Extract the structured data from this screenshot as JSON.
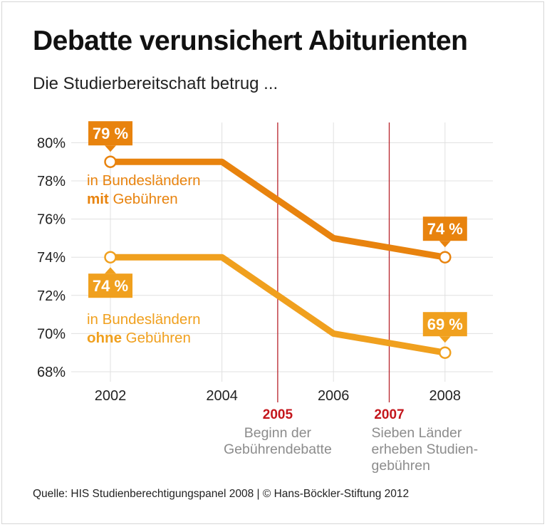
{
  "title": "Debatte verunsichert Abiturienten",
  "subtitle": "Die Studierbereitschaft betrug ...",
  "source": "Quelle: HIS Studienberechtigungspanel 2008 | © Hans-Böckler-Stiftung 2012",
  "colors": {
    "series_mit": "#e8830e",
    "series_ohne": "#f0a01e",
    "event_line": "#b8242b",
    "event_year": "#c4161c",
    "event_text": "#8c8c8c",
    "grid": "#e0e0e0"
  },
  "chart_data": {
    "type": "line",
    "x": [
      2002,
      2004,
      2006,
      2008
    ],
    "x_tick_labels": [
      "2002",
      "2004",
      "2006",
      "2008"
    ],
    "ylim": [
      68,
      80
    ],
    "y_ticks": [
      68,
      70,
      72,
      74,
      76,
      78,
      80
    ],
    "y_tick_labels": [
      "68%",
      "70%",
      "72%",
      "74%",
      "76%",
      "78%",
      "80%"
    ],
    "grid": "horizontal",
    "series": [
      {
        "key": "mit",
        "label_parts": [
          "in Bundesländern",
          "mit",
          "Gebühren"
        ],
        "values": [
          79,
          79,
          75,
          74
        ],
        "callouts": [
          {
            "x": 2002,
            "value": 79,
            "text": "79 %",
            "position": "above"
          },
          {
            "x": 2008,
            "value": 74,
            "text": "74 %",
            "position": "above"
          }
        ]
      },
      {
        "key": "ohne",
        "label_parts": [
          "in Bundesländern",
          "ohne",
          "Gebühren"
        ],
        "values": [
          74,
          74,
          70,
          69
        ],
        "callouts": [
          {
            "x": 2002,
            "value": 74,
            "text": "74 %",
            "position": "below"
          },
          {
            "x": 2008,
            "value": 69,
            "text": "69 %",
            "position": "above"
          }
        ]
      }
    ],
    "events": [
      {
        "x": 2005,
        "year": "2005",
        "lines": [
          "Beginn der",
          "Gebührendebatte"
        ]
      },
      {
        "x": 2007,
        "year": "2007",
        "lines": [
          "Sieben Länder",
          "erheben Studien-",
          "gebühren"
        ]
      }
    ]
  }
}
